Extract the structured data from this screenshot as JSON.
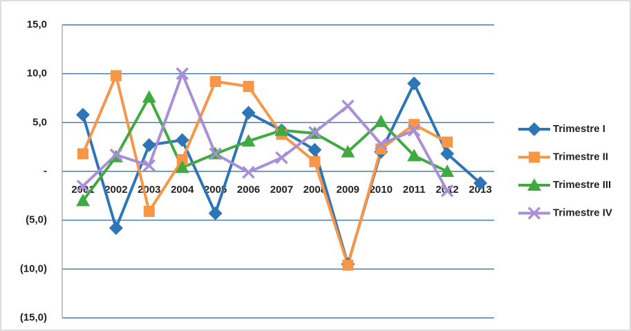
{
  "chart_data": {
    "type": "line",
    "categories": [
      "2001",
      "2002",
      "2003",
      "2004",
      "2005",
      "2006",
      "2007",
      "2008",
      "2009",
      "2010",
      "2011",
      "2012",
      "2013"
    ],
    "series": [
      {
        "name": "Trimestre I",
        "color": "#2e75b6",
        "marker": "diamond",
        "values": [
          5.8,
          -5.8,
          2.7,
          3.2,
          -4.3,
          6.0,
          4.2,
          2.2,
          -9.5,
          2.0,
          9.0,
          1.8,
          -1.2
        ]
      },
      {
        "name": "Trimestre II",
        "color": "#f79646",
        "marker": "square",
        "values": [
          1.8,
          9.8,
          -4.1,
          1.2,
          9.2,
          8.7,
          3.8,
          1.0,
          -9.6,
          2.3,
          4.8,
          3.0,
          null
        ]
      },
      {
        "name": "Trimestre III",
        "color": "#3faa3f",
        "marker": "triangle",
        "values": [
          -3.0,
          1.5,
          7.6,
          0.4,
          1.8,
          3.1,
          4.2,
          3.9,
          2.0,
          5.1,
          1.6,
          0.0,
          null
        ]
      },
      {
        "name": "Trimestre IV",
        "color": "#a98fd6",
        "marker": "x",
        "values": [
          -1.5,
          1.7,
          0.6,
          10.0,
          1.8,
          -0.1,
          1.4,
          4.0,
          6.7,
          2.8,
          4.2,
          -2.0,
          null
        ]
      }
    ],
    "ylim": [
      -15,
      15
    ],
    "yticks": [
      {
        "value": -15,
        "label": "(15,0)"
      },
      {
        "value": -10,
        "label": "(10,0)"
      },
      {
        "value": -5,
        "label": "(5,0)"
      },
      {
        "value": 0,
        "label": "-"
      },
      {
        "value": 5,
        "label": "5,0"
      },
      {
        "value": 10,
        "label": "10,0"
      },
      {
        "value": 15,
        "label": "15,0"
      }
    ],
    "grid": true,
    "legend": "right"
  }
}
